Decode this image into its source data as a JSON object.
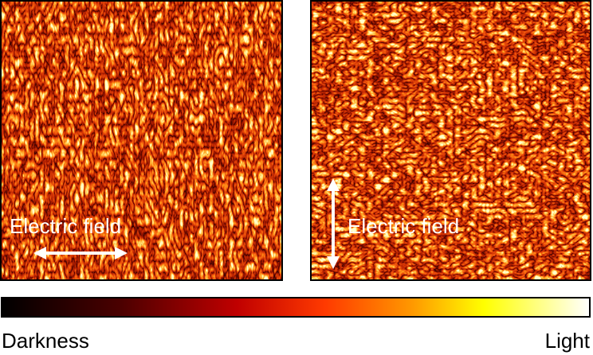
{
  "panels": [
    {
      "label": "Electric field"
    },
    {
      "label": "Electric field"
    }
  ],
  "colorbar": {
    "left_label": "Darkness",
    "right_label": "Light"
  }
}
